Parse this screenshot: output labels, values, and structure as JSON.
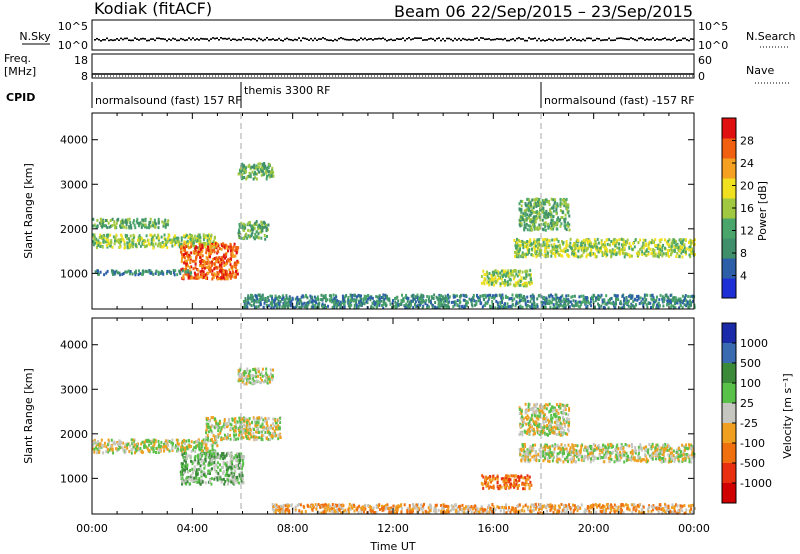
{
  "header": {
    "radar": "Kodiak (fitACF)",
    "beam_date": "Beam 06  22/Sep/2015 – 23/Sep/2015"
  },
  "strips": {
    "nsky_label": "N.Sky",
    "nsearch_label": "N.Search",
    "top_tick_hi": "10^5",
    "top_tick_lo": "10^0",
    "freq_label_1": "Freq.",
    "freq_label_2": "[MHz]",
    "freq_ticks": [
      "18",
      "8"
    ],
    "nave_label": "Nave",
    "nave_ticks": [
      "60",
      "0"
    ],
    "cpid_label": "CPID",
    "cpid_segments": [
      "normalsound (fast) 157 RF",
      "themis 3300 RF",
      "normalsound (fast) -157 RF"
    ]
  },
  "axes": {
    "ylabel": "Slant Range [km]",
    "xlabel": "Time UT",
    "xticks": [
      "00:00",
      "04:00",
      "08:00",
      "12:00",
      "16:00",
      "20:00",
      "00:00"
    ],
    "yticks": [
      "1000",
      "2000",
      "3000",
      "4000"
    ]
  },
  "power_bar": {
    "label": "Power [dB]",
    "ticks": [
      "4",
      "8",
      "12",
      "16",
      "20",
      "24",
      "28"
    ]
  },
  "velocity_bar": {
    "label": "Velocity [m s⁻¹]",
    "ticks": [
      "1000",
      "500",
      "100",
      "25",
      "-25",
      "-100",
      "-500",
      "-1000"
    ]
  },
  "colors": {
    "power": [
      "#1f2fd6",
      "#2c5fa8",
      "#3f8f6a",
      "#4aa56a",
      "#a0c840",
      "#f0e020",
      "#f5a020",
      "#f06010",
      "#e01010"
    ],
    "velocity": [
      "#1a2aa8",
      "#3a6ab0",
      "#3a8a3a",
      "#59c04a",
      "#c6c6c0",
      "#f0a020",
      "#f07010",
      "#e83010",
      "#d00000"
    ]
  },
  "chart_data": [
    {
      "type": "heatmap",
      "title": "Power",
      "xlabel": "Time UT",
      "ylabel": "Slant Range [km]",
      "xlim": [
        "00:00",
        "24:00"
      ],
      "ylim": [
        200,
        4600
      ],
      "colorbar": {
        "label": "Power [dB]",
        "range": [
          0,
          32
        ]
      },
      "regions": [
        {
          "t0": 0.0,
          "t1": 5.0,
          "r0": 1600,
          "r1": 1900,
          "level": 16
        },
        {
          "t0": 0.0,
          "t1": 3.0,
          "r0": 2050,
          "r1": 2250,
          "level": 10
        },
        {
          "t0": 3.5,
          "t1": 5.8,
          "r0": 900,
          "r1": 1700,
          "level": 26
        },
        {
          "t0": 5.8,
          "t1": 7.0,
          "r0": 1800,
          "r1": 2200,
          "level": 12
        },
        {
          "t0": 5.8,
          "t1": 7.2,
          "r0": 3150,
          "r1": 3500,
          "level": 10
        },
        {
          "t0": 0.0,
          "t1": 4.0,
          "r0": 1000,
          "r1": 1100,
          "level": 6
        },
        {
          "t0": 6.0,
          "t1": 24.0,
          "r0": 250,
          "r1": 550,
          "level": 6
        },
        {
          "t0": 15.5,
          "t1": 17.5,
          "r0": 750,
          "r1": 1100,
          "level": 14
        },
        {
          "t0": 16.8,
          "t1": 24.0,
          "r0": 1400,
          "r1": 1800,
          "level": 16
        },
        {
          "t0": 17.0,
          "t1": 19.0,
          "r0": 2000,
          "r1": 2700,
          "level": 12
        }
      ]
    },
    {
      "type": "heatmap",
      "title": "Velocity",
      "xlabel": "Time UT",
      "ylabel": "Slant Range [km]",
      "xlim": [
        "00:00",
        "24:00"
      ],
      "ylim": [
        200,
        4600
      ],
      "colorbar": {
        "label": "Velocity [m s⁻¹]",
        "range": [
          -1000,
          1000
        ]
      },
      "regions": [
        {
          "t0": 0.0,
          "t1": 5.0,
          "r0": 1600,
          "r1": 1900,
          "level": 0
        },
        {
          "t0": 4.5,
          "t1": 7.5,
          "r0": 1900,
          "r1": 2400,
          "level": 0
        },
        {
          "t0": 3.5,
          "t1": 6.0,
          "r0": 900,
          "r1": 1600,
          "level": 60
        },
        {
          "t0": 5.8,
          "t1": 7.2,
          "r0": 3150,
          "r1": 3500,
          "level": 0
        },
        {
          "t0": 7.0,
          "t1": 24.0,
          "r0": 250,
          "r1": 450,
          "level": -50
        },
        {
          "t0": 15.5,
          "t1": 17.5,
          "r0": 800,
          "r1": 1100,
          "level": -100
        },
        {
          "t0": 17.0,
          "t1": 24.0,
          "r0": 1400,
          "r1": 1800,
          "level": 0
        },
        {
          "t0": 17.0,
          "t1": 19.0,
          "r0": 2000,
          "r1": 2700,
          "level": 0
        }
      ]
    }
  ]
}
